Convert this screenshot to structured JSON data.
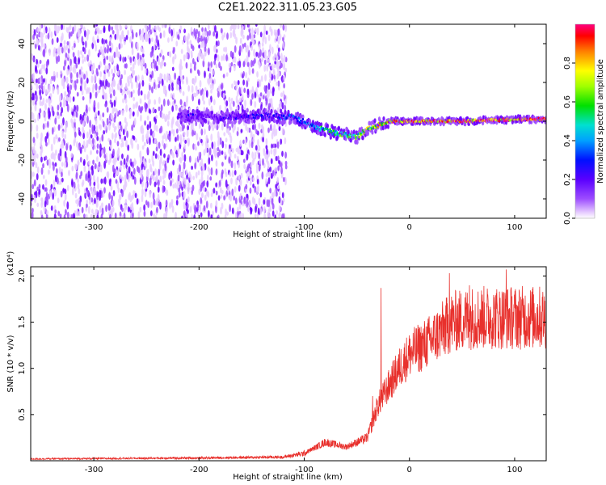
{
  "figure": {
    "title": "C2E1.2022.311.05.23.G05"
  },
  "chart_data": [
    {
      "type": "heatmap",
      "xlabel": "Height of straight line (km)",
      "ylabel": "Frequency (Hz)",
      "xlim": [
        -360,
        130
      ],
      "ylim": [
        -50,
        50
      ],
      "xticks": [
        -300,
        -200,
        -100,
        0,
        100
      ],
      "yticks": [
        -40,
        -20,
        0,
        20,
        40
      ],
      "colorbar": {
        "label": "Normalized spectral amplitude",
        "range": [
          0.0,
          1.0
        ],
        "ticks": [
          0.0,
          0.2,
          0.4,
          0.6,
          0.8
        ],
        "tick_labels": [
          "0.0",
          "0.2",
          "0.4",
          "0.6",
          "0.8"
        ],
        "colors": [
          "#ffffff",
          "#e6ccff",
          "#9d4dff",
          "#6a00ff",
          "#0000ff",
          "#0080ff",
          "#00e0e0",
          "#00e000",
          "#80ff00",
          "#ffff00",
          "#ff8000",
          "#ff0000",
          "#ff0080"
        ]
      },
      "description_points": {
        "noise_region_x": [
          -360,
          -117
        ],
        "signal_track": [
          {
            "x": -220,
            "y": 3,
            "amp": 0.25
          },
          {
            "x": -180,
            "y": 2,
            "amp": 0.25
          },
          {
            "x": -140,
            "y": 3,
            "amp": 0.3
          },
          {
            "x": -110,
            "y": 2,
            "amp": 0.35
          },
          {
            "x": -90,
            "y": -3,
            "amp": 0.45
          },
          {
            "x": -70,
            "y": -6,
            "amp": 0.55
          },
          {
            "x": -50,
            "y": -8,
            "amp": 0.6
          },
          {
            "x": -40,
            "y": -4,
            "amp": 0.65
          },
          {
            "x": -20,
            "y": 0,
            "amp": 0.8
          },
          {
            "x": 0,
            "y": 0,
            "amp": 0.85
          },
          {
            "x": 50,
            "y": 0,
            "amp": 0.9
          },
          {
            "x": 100,
            "y": 1,
            "amp": 0.9
          },
          {
            "x": 130,
            "y": 1,
            "amp": 0.9
          }
        ]
      },
      "grid": false
    },
    {
      "type": "line",
      "xlabel": "Height of straight line (km)",
      "ylabel": "SNR (10 * v/v)",
      "yscale_label": "(x10⁴)",
      "xlim": [
        -360,
        130
      ],
      "ylim": [
        0,
        2.1
      ],
      "xticks": [
        -300,
        -200,
        -100,
        0,
        100
      ],
      "yticks": [
        0.5,
        1.0,
        1.5,
        2.0
      ],
      "ytick_labels": [
        "0.5",
        "1.0",
        "1.5",
        "2.0"
      ],
      "series": [
        {
          "color": "#e8302c",
          "envelope": [
            {
              "x": -360,
              "y": 0.02
            },
            {
              "x": -200,
              "y": 0.03
            },
            {
              "x": -120,
              "y": 0.04
            },
            {
              "x": -100,
              "y": 0.08
            },
            {
              "x": -80,
              "y": 0.2
            },
            {
              "x": -60,
              "y": 0.15
            },
            {
              "x": -40,
              "y": 0.25
            },
            {
              "x": -30,
              "y": 0.6
            },
            {
              "x": -20,
              "y": 0.8
            },
            {
              "x": -10,
              "y": 1.0
            },
            {
              "x": 0,
              "y": 1.15
            },
            {
              "x": 20,
              "y": 1.3
            },
            {
              "x": 40,
              "y": 1.5
            },
            {
              "x": 60,
              "y": 1.55
            },
            {
              "x": 80,
              "y": 1.55
            },
            {
              "x": 100,
              "y": 1.55
            },
            {
              "x": 130,
              "y": 1.55
            }
          ],
          "spikes": [
            {
              "x": -27,
              "y": 1.87
            },
            {
              "x": 38,
              "y": 2.03
            },
            {
              "x": 92,
              "y": 2.07
            },
            {
              "x": 57,
              "y": 1.9
            },
            {
              "x": -35,
              "y": 0.7
            }
          ]
        }
      ],
      "grid": false
    }
  ]
}
